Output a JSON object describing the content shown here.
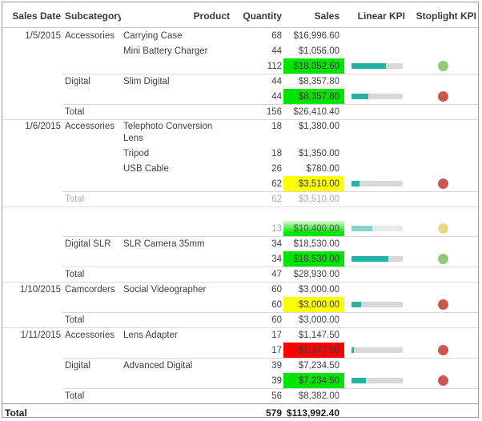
{
  "report": {
    "columns": [
      {
        "id": "sales-date",
        "label": "Sales Date",
        "align": "right"
      },
      {
        "id": "subcategory",
        "label": "Subcategory",
        "align": "left"
      },
      {
        "id": "product",
        "label": "Product",
        "align": "right"
      },
      {
        "id": "quantity",
        "label": "Quantity",
        "align": "right"
      },
      {
        "id": "sales",
        "label": "Sales",
        "align": "right"
      },
      {
        "id": "linear-kpi",
        "label": "Linear KPI",
        "align": "right"
      },
      {
        "id": "stoplight-kpi",
        "label": "Stoplight KPI",
        "align": "right"
      }
    ],
    "colors": {
      "kpi_green": "#00e400",
      "kpi_yellow": "#ffff00",
      "kpi_red": "#ff0000",
      "kpi_green_fade_top": "#d9f7d0",
      "bar_fill": "#22b2a6",
      "bar_track": "#d8d8d8",
      "stoplight_green": "#8fca78",
      "stoplight_red": "#c9564f",
      "stoplight_yellow": "#e8da85"
    },
    "rows": [
      {
        "type": "detail",
        "date": "1/5/2015",
        "subcategory": "Accessories",
        "product": "Carrying Case",
        "quantity": "68",
        "sales": "$16,996.60"
      },
      {
        "type": "detail",
        "product": "Mini Battery Charger",
        "quantity": "44",
        "sales": "$1,056.00"
      },
      {
        "type": "subtotal",
        "quantity": "112",
        "sales": "$18,052.60",
        "sales_bg": "green",
        "kpi_pct": 67,
        "stoplight": "green"
      },
      {
        "type": "detail",
        "subcategory": "Digital",
        "product": "Slim Digital",
        "quantity": "44",
        "sales": "$8,357.80",
        "sep": "sub"
      },
      {
        "type": "subtotal",
        "quantity": "44",
        "sales": "$8,357.80",
        "sales_bg": "green",
        "kpi_pct": 33,
        "stoplight": "red"
      },
      {
        "type": "total",
        "label": "Total",
        "quantity": "156",
        "sales": "$26,410.40",
        "sep": "sub"
      },
      {
        "type": "detail",
        "tall": true,
        "date": "1/6/2015",
        "subcategory": "Accessories",
        "product": "Telephoto Conversion Lens",
        "quantity": "18",
        "sales": "$1,380.00",
        "sep": "full"
      },
      {
        "type": "detail",
        "product": "Tripod",
        "quantity": "18",
        "sales": "$1,350.00"
      },
      {
        "type": "detail",
        "product": "USB Cable",
        "quantity": "26",
        "sales": "$780.00"
      },
      {
        "type": "subtotal",
        "quantity": "62",
        "sales": "$3,510.00",
        "sales_bg": "yellow",
        "kpi_pct": 15,
        "stoplight": "red"
      },
      {
        "type": "total",
        "label": "Total",
        "faded": true,
        "quantity": "62",
        "sales": "$3,510.00",
        "sep": "sub"
      },
      {
        "type": "ghost",
        "sep": "full"
      },
      {
        "type": "subtotal",
        "faded": true,
        "quantity": "13",
        "sales": "$10,400.00",
        "sales_bg": "green_fade",
        "kpi_pct": 40,
        "stoplight": "yellow"
      },
      {
        "type": "detail",
        "subcategory": "Digital SLR",
        "product": "SLR Camera 35mm",
        "quantity": "34",
        "sales": "$18,530.00",
        "sep": "sub"
      },
      {
        "type": "subtotal",
        "quantity": "34",
        "sales": "$18,530.00",
        "sales_bg": "green",
        "kpi_pct": 72,
        "stoplight": "green"
      },
      {
        "type": "total",
        "label": "Total",
        "quantity": "47",
        "sales": "$28,930.00",
        "sep": "sub"
      },
      {
        "type": "detail",
        "date": "1/10/2015",
        "subcategory": "Camcorders",
        "product": "Social Videographer",
        "quantity": "60",
        "sales": "$3,000.00",
        "sep": "full"
      },
      {
        "type": "subtotal",
        "quantity": "60",
        "sales": "$3,000.00",
        "sales_bg": "yellow",
        "kpi_pct": 18,
        "stoplight": "red"
      },
      {
        "type": "total",
        "label": "Total",
        "quantity": "60",
        "sales": "$3,000.00",
        "sep": "sub"
      },
      {
        "type": "detail",
        "date": "1/11/2015",
        "subcategory": "Accessories",
        "product": "Lens Adapter",
        "quantity": "17",
        "sales": "$1,147.50",
        "sep": "full"
      },
      {
        "type": "subtotal",
        "quantity": "17",
        "sales": "$1,147.50",
        "sales_bg": "red",
        "kpi_pct": 5,
        "stoplight": "red"
      },
      {
        "type": "detail",
        "subcategory": "Digital",
        "product": "Advanced Digital",
        "quantity": "39",
        "sales": "$7,234.50",
        "sep": "sub"
      },
      {
        "type": "subtotal",
        "quantity": "39",
        "sales": "$7,234.50",
        "sales_bg": "green",
        "kpi_pct": 28,
        "stoplight": "red"
      },
      {
        "type": "total",
        "label": "Total",
        "quantity": "56",
        "sales": "$8,382.00",
        "sep": "sub"
      },
      {
        "type": "grand",
        "label": "Total",
        "quantity": "579",
        "sales": "$113,992.40"
      }
    ]
  }
}
